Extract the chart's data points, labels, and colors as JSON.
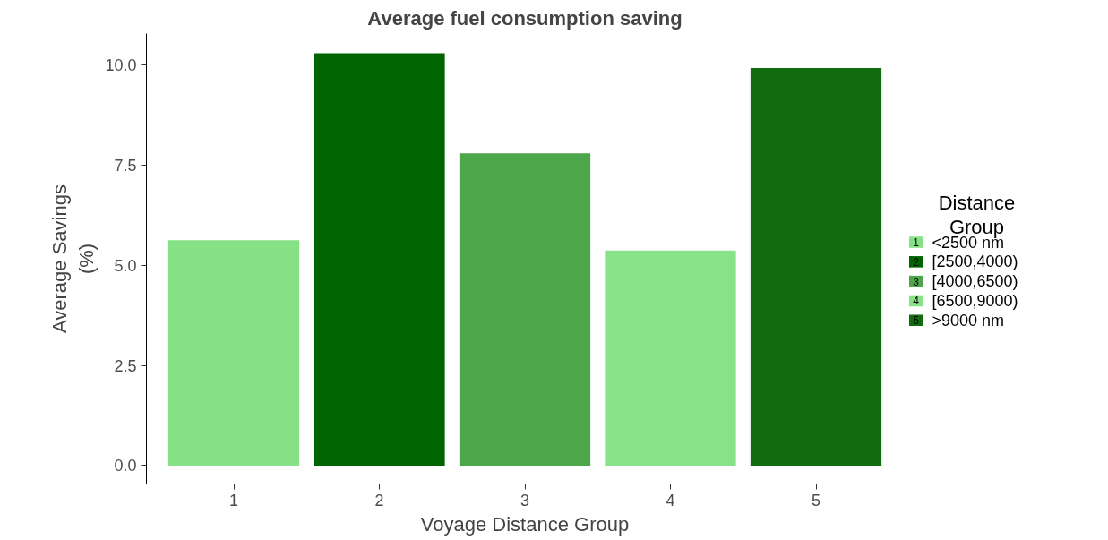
{
  "chart_data": {
    "type": "bar",
    "title": "Average fuel consumption saving",
    "xlabel": "Voyage Distance Group",
    "ylabel": "Average Savings\n(%)",
    "legend_title": "Distance\nGroup",
    "categories": [
      "1",
      "2",
      "3",
      "4",
      "5"
    ],
    "series": [
      {
        "name": "<2500 nm",
        "color": "#86e086",
        "values": [
          5.63,
          null,
          null,
          null,
          null
        ]
      },
      {
        "name": "[2500,4000)",
        "color": "#006400",
        "values": [
          null,
          10.3,
          null,
          null,
          null
        ]
      },
      {
        "name": "[4000,6500)",
        "color": "#4ea64a",
        "values": [
          null,
          null,
          7.8,
          null,
          null
        ]
      },
      {
        "name": "[6500,9000)",
        "color": "#88e288",
        "values": [
          null,
          null,
          null,
          5.37,
          null
        ]
      },
      {
        "name": ">9000 nm",
        "color": "#136b10",
        "values": [
          null,
          null,
          null,
          null,
          9.93
        ]
      }
    ],
    "ylim": [
      -0.46,
      10.79
    ],
    "yticks": [
      {
        "value": 0,
        "label": "0.0"
      },
      {
        "value": 2.5,
        "label": "2.5"
      },
      {
        "value": 5,
        "label": "5.0"
      },
      {
        "value": 7.5,
        "label": "7.5"
      },
      {
        "value": 10,
        "label": "10.0"
      }
    ],
    "grid": false,
    "legend": "right"
  }
}
